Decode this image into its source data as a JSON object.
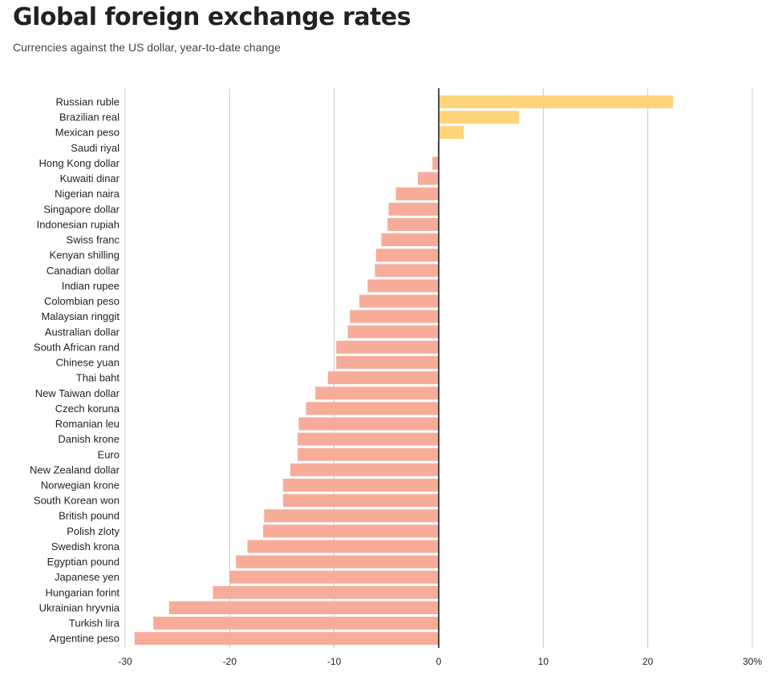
{
  "header": {
    "title": "Global foreign exchange rates",
    "subtitle": "Currencies against the US dollar, year-to-date change"
  },
  "colors": {
    "positive": "#FFD37A",
    "negative": "#F7AC9A",
    "grid": "#C8C8C8",
    "zero_line": "#222222",
    "text": "#222222"
  },
  "chart_data": {
    "type": "bar",
    "orientation": "horizontal",
    "title": "Global foreign exchange rates",
    "subtitle": "Currencies against the US dollar, year-to-date change",
    "xlabel": "",
    "ylabel": "",
    "xlim": [
      -30,
      30
    ],
    "x_ticks": [
      -30,
      -20,
      -10,
      0,
      10,
      20,
      30
    ],
    "x_tick_labels": [
      "-30",
      "-20",
      "-10",
      "0",
      "10",
      "20",
      "30%"
    ],
    "grid": true,
    "legend": "none",
    "categories": [
      "Russian ruble",
      "Brazilian real",
      "Mexican peso",
      "Saudi riyal",
      "Hong Kong dollar",
      "Kuwaiti dinar",
      "Nigerian naira",
      "Singapore dollar",
      "Indonesian rupiah",
      "Swiss franc",
      "Kenyan shilling",
      "Canadian dollar",
      "Indian rupee",
      "Colombian peso",
      "Malaysian ringgit",
      "Australian dollar",
      "South African rand",
      "Chinese yuan",
      "Thai baht",
      "New Taiwan dollar",
      "Czech koruna",
      "Romanian leu",
      "Danish krone",
      "Euro",
      "New Zealand dollar",
      "Norwegian krone",
      "South Korean won",
      "British pound",
      "Polish zloty",
      "Swedish krona",
      "Egyptian pound",
      "Japanese yen",
      "Hungarian forint",
      "Ukrainian hryvnia",
      "Turkish lira",
      "Argentine peso"
    ],
    "values": [
      22.4,
      7.7,
      2.4,
      -0.1,
      -0.6,
      -2.0,
      -4.1,
      -4.8,
      -4.9,
      -5.5,
      -6.0,
      -6.1,
      -6.8,
      -7.6,
      -8.5,
      -8.7,
      -9.8,
      -9.8,
      -10.6,
      -11.8,
      -12.7,
      -13.4,
      -13.5,
      -13.5,
      -14.2,
      -14.9,
      -14.9,
      -16.7,
      -16.8,
      -18.3,
      -19.4,
      -20.0,
      -21.6,
      -25.8,
      -27.3,
      -29.1
    ]
  }
}
